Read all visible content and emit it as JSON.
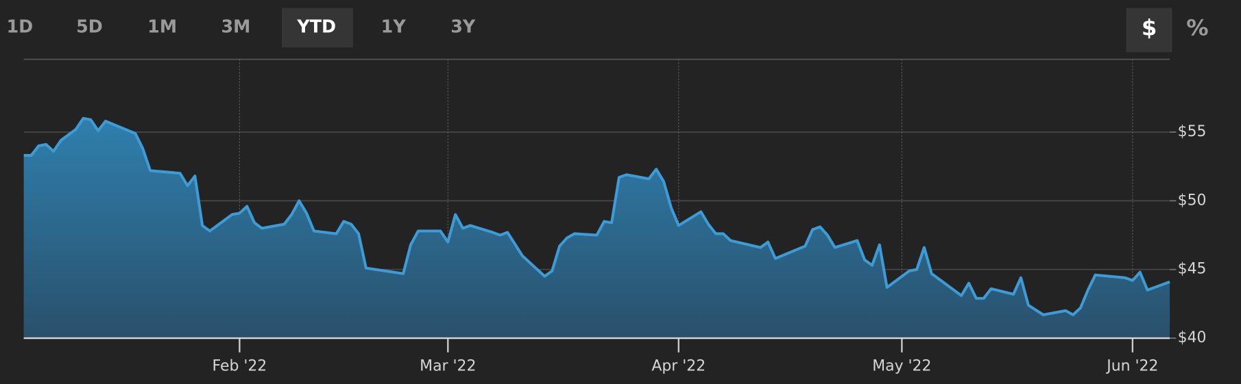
{
  "toolbar": {
    "ranges": [
      "1D",
      "5D",
      "1M",
      "3M",
      "YTD",
      "1Y",
      "3Y"
    ],
    "active_range": 4,
    "units": [
      "$",
      "%"
    ],
    "active_unit": 0
  },
  "chart_data": {
    "type": "area",
    "color": "#3d9bd6",
    "grid": true,
    "x": [
      2,
      3,
      4,
      5,
      6,
      7,
      9,
      10,
      11,
      12,
      13,
      17,
      18,
      19,
      21,
      23,
      24,
      25,
      26,
      27,
      30,
      31,
      32,
      33,
      34,
      37,
      38,
      39,
      40,
      41,
      44,
      45,
      46,
      47,
      48,
      53,
      54,
      55,
      58,
      59,
      60,
      61,
      62,
      65,
      66,
      67,
      69,
      72,
      73,
      74,
      75,
      76,
      79,
      80,
      81,
      82,
      83,
      86,
      87,
      88,
      89,
      90,
      93,
      94,
      95,
      96,
      97,
      101,
      102,
      103,
      107,
      108,
      109,
      110,
      111,
      114,
      115,
      116,
      117,
      118,
      121,
      122,
      123,
      124,
      125,
      128,
      129,
      130,
      131,
      132,
      135,
      136,
      137,
      139,
      142,
      143,
      144,
      145,
      146,
      150,
      151,
      152,
      153,
      156
    ],
    "values": [
      53.3,
      53.3,
      54.0,
      54.1,
      53.6,
      54.4,
      55.2,
      56.0,
      55.9,
      55.1,
      55.8,
      54.9,
      53.8,
      52.2,
      52.1,
      52.0,
      51.1,
      51.8,
      48.2,
      47.8,
      49.0,
      49.1,
      49.6,
      48.4,
      48.0,
      48.3,
      49.0,
      50.0,
      49.1,
      47.8,
      47.6,
      48.5,
      48.3,
      47.6,
      45.1,
      44.7,
      46.8,
      47.8,
      47.8,
      47.0,
      49.0,
      48.0,
      48.2,
      47.7,
      47.5,
      47.7,
      46.0,
      44.5,
      44.9,
      46.7,
      47.3,
      47.6,
      47.5,
      48.5,
      48.4,
      51.7,
      51.9,
      51.6,
      52.3,
      51.4,
      49.5,
      48.2,
      49.2,
      48.3,
      47.6,
      47.6,
      47.1,
      46.6,
      47.0,
      45.8,
      46.7,
      47.9,
      48.1,
      47.5,
      46.6,
      47.1,
      45.7,
      45.3,
      46.8,
      43.7,
      44.9,
      45.0,
      46.6,
      44.7,
      44.3,
      43.1,
      44.0,
      42.9,
      42.9,
      43.6,
      43.2,
      44.4,
      42.4,
      41.7,
      42.0,
      41.7,
      42.2,
      43.5,
      44.6,
      44.4,
      44.2,
      44.8,
      43.5,
      44.1
    ],
    "xlim": [
      2,
      156
    ],
    "xticks": [
      {
        "value": 31,
        "label": "Feb '22"
      },
      {
        "value": 59,
        "label": "Mar '22"
      },
      {
        "value": 90,
        "label": "Apr '22"
      },
      {
        "value": 120,
        "label": "May '22"
      },
      {
        "value": 151,
        "label": "Jun '22"
      }
    ],
    "ylim": [
      40,
      60.3
    ],
    "yticks": [
      {
        "value": 40,
        "label": "$40"
      },
      {
        "value": 45,
        "label": "$45"
      },
      {
        "value": 50,
        "label": "$50"
      },
      {
        "value": 55,
        "label": "$55"
      }
    ]
  }
}
